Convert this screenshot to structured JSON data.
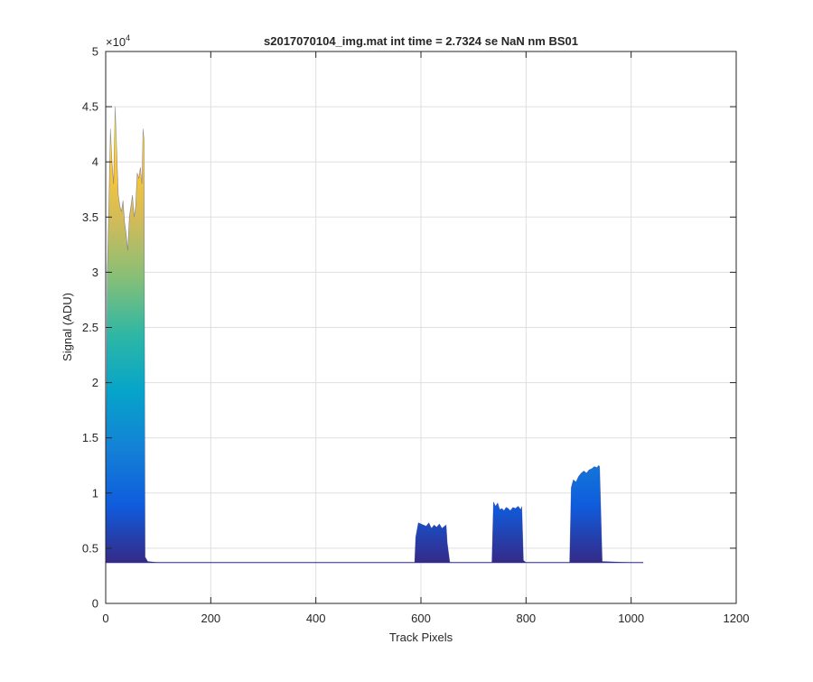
{
  "chart_data": {
    "type": "area",
    "title": "s2017070104_img.mat int time = 2.7324 se  NaN nm BS01",
    "xlabel": "Track Pixels",
    "ylabel": "Signal (ADU)",
    "xlim": [
      0,
      1200
    ],
    "ylim": [
      0,
      50000
    ],
    "x_ticks": [
      0,
      200,
      400,
      600,
      800,
      1000,
      1200
    ],
    "x_tick_labels": [
      "0",
      "200",
      "400",
      "600",
      "800",
      "1000",
      "1200"
    ],
    "y_ticks": [
      0,
      5000,
      10000,
      15000,
      20000,
      25000,
      30000,
      35000,
      40000,
      45000,
      50000
    ],
    "y_tick_labels": [
      "0",
      "0.5",
      "1",
      "1.5",
      "2",
      "2.5",
      "3",
      "3.5",
      "4",
      "4.5",
      "5"
    ],
    "y_exponent_label": "×10",
    "y_exponent_power": "4",
    "grid": true,
    "colormap": "parula",
    "baseline": 3700,
    "series": [
      {
        "x": [
          0,
          3,
          6,
          9,
          12,
          15,
          18,
          21,
          24,
          27,
          30,
          33,
          36,
          39,
          42,
          45,
          48,
          51,
          54,
          57,
          60,
          63,
          66,
          69,
          71,
          73,
          75,
          80,
          100,
          200,
          300,
          400,
          500,
          580,
          588,
          590,
          595,
          600,
          605,
          610,
          615,
          620,
          625,
          630,
          635,
          640,
          645,
          648,
          650,
          655,
          700,
          730,
          735,
          738,
          742,
          746,
          750,
          754,
          758,
          762,
          766,
          770,
          775,
          780,
          785,
          790,
          792,
          795,
          800,
          850,
          878,
          883,
          886,
          890,
          895,
          900,
          905,
          910,
          915,
          920,
          925,
          930,
          935,
          938,
          940,
          945,
          1000,
          1022,
          1023
        ],
        "values": [
          3700,
          30000,
          36000,
          43000,
          40000,
          38000,
          45000,
          41000,
          37000,
          36000,
          35500,
          36500,
          34500,
          33500,
          32000,
          35000,
          36000,
          37000,
          35000,
          36000,
          39000,
          38500,
          39500,
          38000,
          43000,
          42000,
          4200,
          3800,
          3700,
          3700,
          3700,
          3700,
          3700,
          3700,
          3700,
          6000,
          7300,
          7200,
          7100,
          7000,
          7300,
          6800,
          7100,
          6900,
          7200,
          6800,
          7000,
          7100,
          5500,
          3700,
          3700,
          3700,
          3700,
          9200,
          8800,
          9100,
          8500,
          8600,
          8400,
          8700,
          8600,
          8400,
          8700,
          8600,
          8800,
          8500,
          8800,
          3900,
          3700,
          3700,
          3700,
          3700,
          10500,
          11200,
          11000,
          11500,
          11800,
          12000,
          11800,
          12100,
          12200,
          12400,
          12300,
          12500,
          12400,
          3800,
          3700,
          3700,
          3650
        ]
      }
    ]
  },
  "colors": {
    "grid": "#dfdfdf",
    "axis": "#262626",
    "baseline_line": "#2e2a8c",
    "parula": [
      "#352a87",
      "#0f5cdd",
      "#1481d6",
      "#06a4ca",
      "#2eb7a4",
      "#87bf77",
      "#d1bb59",
      "#fec832",
      "#f9fb0e"
    ]
  }
}
